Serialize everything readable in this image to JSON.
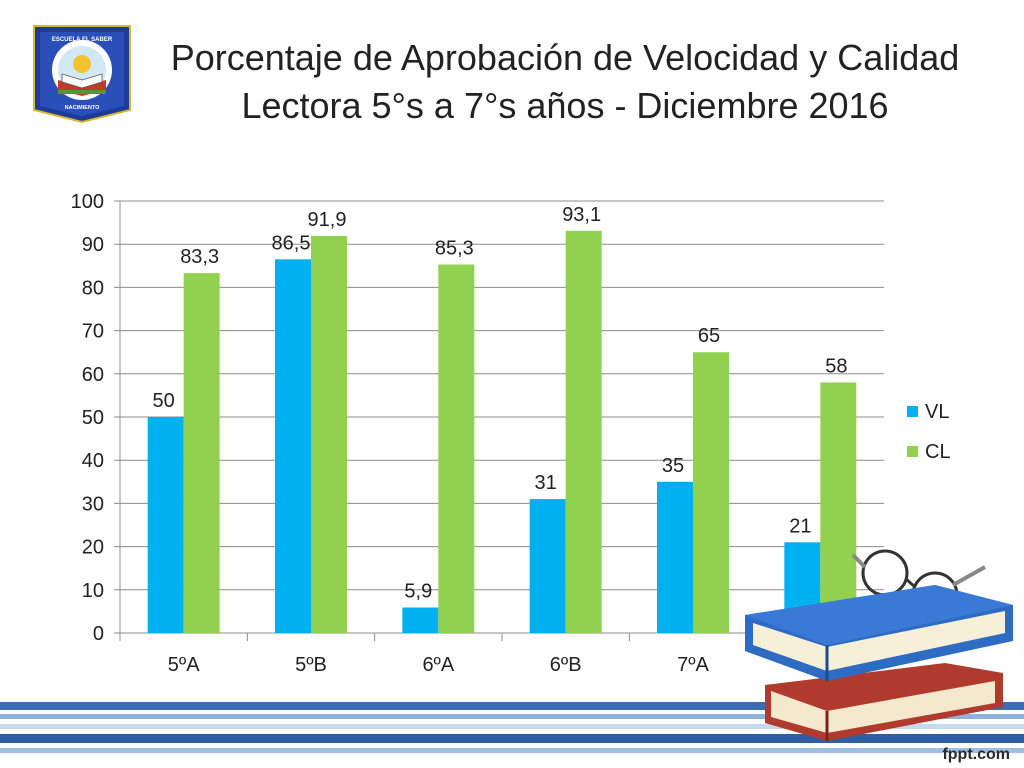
{
  "slide": {
    "title": "Porcentaje de Aprobación de Velocidad y Calidad Lectora 5°s a 7°s años - Diciembre 2016",
    "logo": {
      "top_text": "ESCUELA EL SABER",
      "bottom_text": "NACIMIENTO"
    },
    "watermark": "fppt.com"
  },
  "chart_data": {
    "type": "bar",
    "categories": [
      "5ºA",
      "5ºB",
      "6ºA",
      "6ºB",
      "7ºA",
      "7ºB"
    ],
    "series": [
      {
        "name": "VL",
        "color": "#00B0F0",
        "values": [
          50,
          86.5,
          5.9,
          31,
          35,
          21
        ],
        "labels": [
          "50",
          "86,5",
          "5,9",
          "31",
          "35",
          "21"
        ]
      },
      {
        "name": "CL",
        "color": "#92D050",
        "values": [
          83.3,
          91.9,
          85.3,
          93.1,
          65,
          58
        ],
        "labels": [
          "83,3",
          "91,9",
          "85,3",
          "93,1",
          "65",
          "58"
        ]
      }
    ],
    "ylim": [
      0,
      100
    ],
    "yticks": [
      0,
      10,
      20,
      30,
      40,
      50,
      60,
      70,
      80,
      90,
      100
    ],
    "grid": true,
    "legend": "right"
  }
}
